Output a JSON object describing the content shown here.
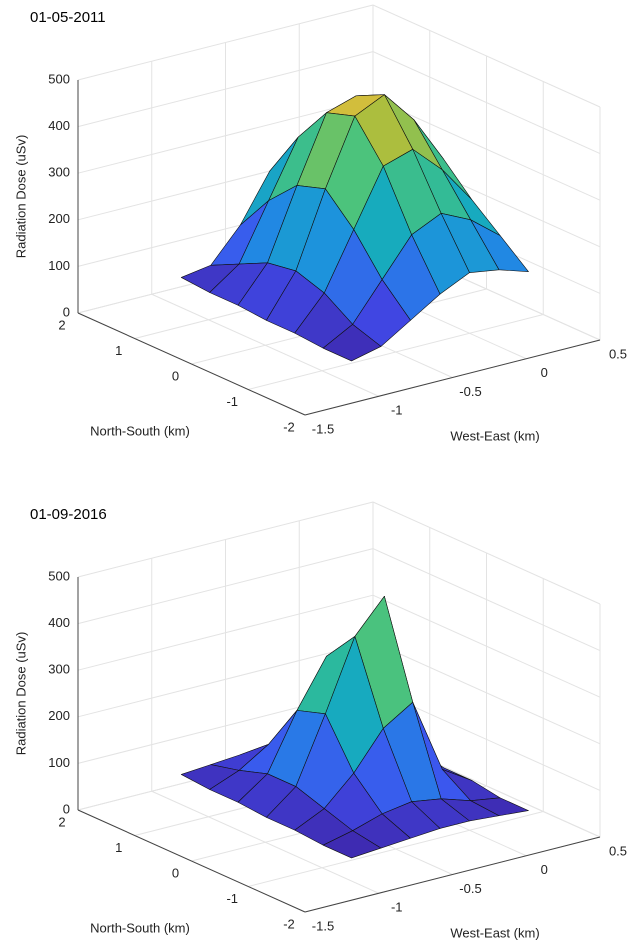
{
  "chart_data": [
    {
      "type": "surface",
      "title": "01-05-2011",
      "xlabel": "West-East (km)",
      "ylabel": "North-South (km)",
      "zlabel": "Radiation Dose (uSv)",
      "xlim": [
        -1.5,
        0.5
      ],
      "ylim": [
        -2,
        2
      ],
      "zlim": [
        0,
        500
      ],
      "xticks": [
        -1.5,
        -1,
        -0.5,
        0,
        0.5
      ],
      "yticks": [
        -2,
        -1,
        0,
        1,
        2
      ],
      "zticks": [
        0,
        100,
        200,
        300,
        400,
        500
      ],
      "grid": true,
      "colormap": "parula",
      "x": [
        -0.8,
        -0.6,
        -0.4,
        -0.2,
        0,
        0.2,
        0.4
      ],
      "y": [
        -1,
        -0.5,
        0,
        0.5,
        1,
        1.5,
        2
      ],
      "z": [
        [
          5,
          20,
          60,
          100,
          130,
          120,
          100
        ],
        [
          5,
          40,
          120,
          200,
          230,
          200,
          150
        ],
        [
          10,
          80,
          200,
          320,
          340,
          280,
          200
        ],
        [
          10,
          100,
          260,
          400,
          430,
          360,
          260
        ],
        [
          15,
          90,
          240,
          380,
          400,
          340,
          250
        ],
        [
          15,
          60,
          180,
          300,
          330,
          280,
          200
        ],
        [
          20,
          30,
          100,
          200,
          240,
          200,
          150
        ]
      ]
    },
    {
      "type": "surface",
      "title": "01-09-2016",
      "xlabel": "West-East (km)",
      "ylabel": "North-South (km)",
      "zlabel": "Radiation Dose (uSv)",
      "xlim": [
        -1.5,
        0.5
      ],
      "ylim": [
        -2,
        2
      ],
      "zlim": [
        0,
        500
      ],
      "xticks": [
        -1.5,
        -1,
        -0.5,
        0,
        0.5
      ],
      "yticks": [
        -2,
        -1,
        0,
        1,
        2
      ],
      "zticks": [
        0,
        100,
        200,
        300,
        400,
        500
      ],
      "grid": true,
      "colormap": "parula",
      "x": [
        -0.8,
        -0.6,
        -0.4,
        -0.2,
        0,
        0.2,
        0.4
      ],
      "y": [
        -1,
        -0.5,
        0,
        0.5,
        1,
        1.5,
        2
      ],
      "z": [
        [
          5,
          10,
          15,
          20,
          20,
          15,
          10
        ],
        [
          5,
          20,
          40,
          50,
          40,
          20,
          10
        ],
        [
          10,
          40,
          100,
          180,
          220,
          60,
          20
        ],
        [
          10,
          60,
          200,
          350,
          420,
          80,
          20
        ],
        [
          15,
          60,
          180,
          280,
          200,
          50,
          20
        ],
        [
          15,
          40,
          80,
          100,
          60,
          30,
          20
        ],
        [
          20,
          25,
          30,
          30,
          25,
          20,
          15
        ]
      ]
    }
  ]
}
